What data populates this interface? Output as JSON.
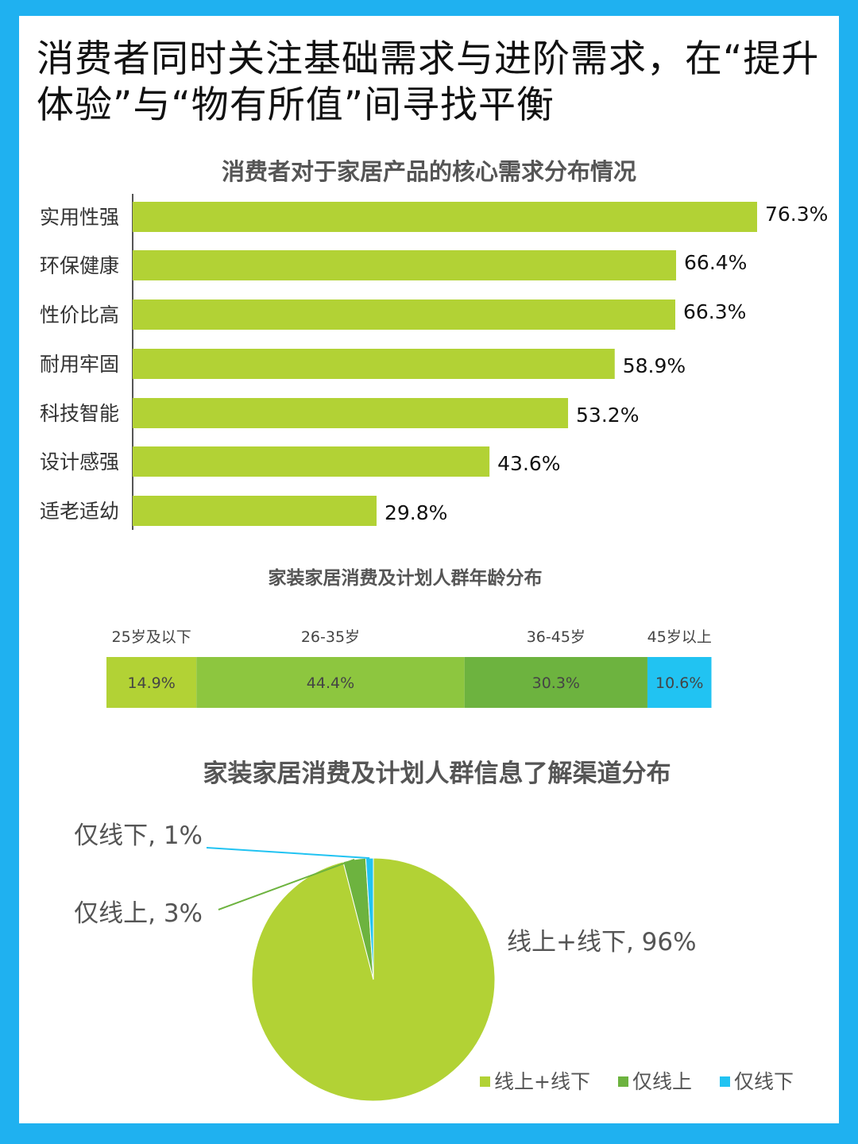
{
  "headline": "消费者同时关注基础需求与进阶需求，在“提升体验”与“物有所值”间寻找平衡",
  "colors": {
    "background": "#1fb1f0",
    "lime": "#b2d235",
    "green": "#8dc63f",
    "dark_green": "#6db33f",
    "cyan": "#21c3f2"
  },
  "chart_data": [
    {
      "type": "bar",
      "orientation": "horizontal",
      "title": "消费者对于家居产品的核心需求分布情况",
      "categories": [
        "实用性强",
        "环保健康",
        "性价比高",
        "耐用牢固",
        "科技智能",
        "设计感强",
        "适老适幼"
      ],
      "values": [
        76.3,
        66.4,
        66.3,
        58.9,
        53.2,
        43.6,
        29.8
      ],
      "value_labels": [
        "76.3%",
        "66.4%",
        "66.3%",
        "58.9%",
        "53.2%",
        "43.6%",
        "29.8%"
      ],
      "unit": "%",
      "xlim": [
        0,
        76.3
      ],
      "grid": false,
      "legend": "none"
    },
    {
      "type": "bar",
      "orientation": "stacked-horizontal",
      "title": "家装家居消费及计划人群年龄分布",
      "categories": [
        "25岁及以下",
        "26-35岁",
        "36-45岁",
        "45岁以上"
      ],
      "values": [
        14.9,
        44.4,
        30.3,
        10.6
      ],
      "value_labels": [
        "14.9%",
        "44.4%",
        "30.3%",
        "10.6%"
      ],
      "colors": [
        "#b2d235",
        "#8dc63f",
        "#6db33f",
        "#21c3f2"
      ],
      "unit": "%",
      "grid": false,
      "legend": "labels-above"
    },
    {
      "type": "pie",
      "title": "家装家居消费及计划人群信息了解渠道分布",
      "labels": [
        "线上+线下",
        "仅线上",
        "仅线下"
      ],
      "values": [
        96,
        3,
        1
      ],
      "slice_labels": [
        "线上+线下, 96%",
        "仅线上, 3%",
        "仅线下, 1%"
      ],
      "colors": [
        "#b2d235",
        "#6db33f",
        "#21c3f2"
      ],
      "legend": "bottom-right"
    }
  ]
}
